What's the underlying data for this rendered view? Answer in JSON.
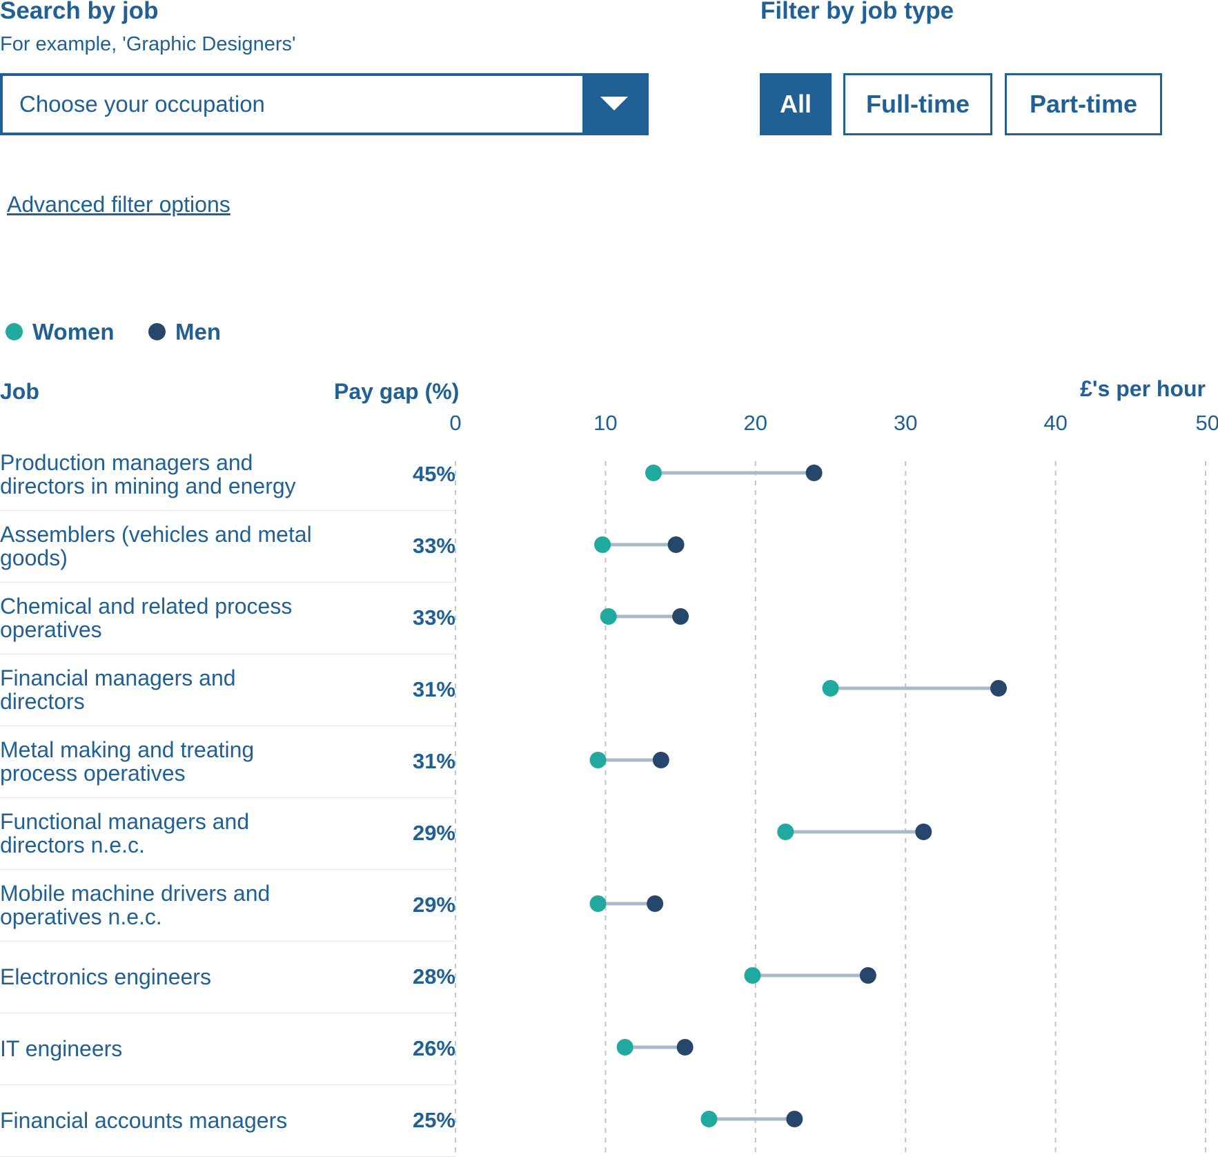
{
  "search": {
    "title": "Search by job",
    "hint": "For example, 'Graphic Designers'",
    "placeholder": "Choose your occupation"
  },
  "filter": {
    "title": "Filter by job type",
    "buttons": [
      {
        "label": "All",
        "active": true
      },
      {
        "label": "Full-time",
        "active": false
      },
      {
        "label": "Part-time",
        "active": false
      }
    ]
  },
  "advanced_link": "Advanced filter options",
  "legend": {
    "women": "Women",
    "men": "Men"
  },
  "columns": {
    "job": "Job",
    "gap": "Pay gap (%)",
    "hourly": "£'s per hour"
  },
  "colors": {
    "women": "#1fa99f",
    "men": "#26466b",
    "accent": "#206095",
    "connector": "#a9b9c9"
  },
  "chart_data": {
    "type": "dumbbell",
    "xlim": [
      0,
      50
    ],
    "ticks": [
      0,
      10,
      20,
      30,
      40,
      50
    ],
    "xlabel": "£'s per hour",
    "series": [
      {
        "name": "Women",
        "values": [
          13.2,
          9.8,
          10.2,
          25.0,
          9.5,
          22.0,
          9.5,
          19.8,
          11.3,
          16.9
        ]
      },
      {
        "name": "Men",
        "values": [
          23.9,
          14.7,
          15.0,
          36.2,
          13.7,
          31.2,
          13.3,
          27.5,
          15.3,
          22.6
        ]
      }
    ],
    "rows": [
      {
        "job": "Production managers and directors in mining and energy",
        "gap": "45%"
      },
      {
        "job": "Assemblers (vehicles and metal goods)",
        "gap": "33%"
      },
      {
        "job": "Chemical and related process operatives",
        "gap": "33%"
      },
      {
        "job": "Financial managers and directors",
        "gap": "31%"
      },
      {
        "job": "Metal making and treating process operatives",
        "gap": "31%"
      },
      {
        "job": "Functional managers and directors n.e.c.",
        "gap": "29%"
      },
      {
        "job": "Mobile machine drivers and operatives n.e.c.",
        "gap": "29%"
      },
      {
        "job": "Electronics engineers",
        "gap": "28%"
      },
      {
        "job": "IT engineers",
        "gap": "26%"
      },
      {
        "job": "Financial accounts managers",
        "gap": "25%"
      }
    ]
  }
}
